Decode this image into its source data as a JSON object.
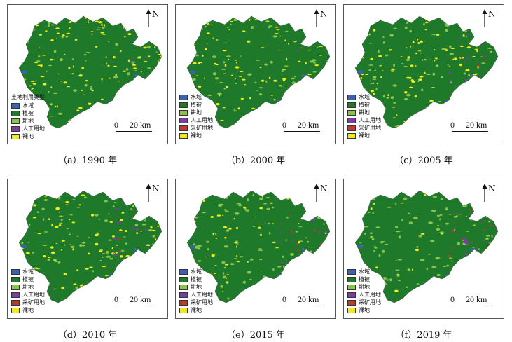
{
  "legend_title": "土地利用类型",
  "north_label": "N",
  "scale": {
    "zero": "0",
    "distance": "20 km"
  },
  "colors": {
    "water": "#3d63b0",
    "vegetation": "#1e7a2a",
    "farmland": "#8bc34a",
    "artificial": "#7b3fa0",
    "mining": "#c0392b",
    "bare": "#f2ea1d"
  },
  "legend_items": {
    "water": "水域",
    "vegetation": "植被",
    "farmland": "耕地",
    "artificial": "人工用地",
    "mining": "采矿用地",
    "bare": "裸地"
  },
  "panels": [
    {
      "caption": "（a）1990 年",
      "classes": [
        "water",
        "vegetation",
        "farmland",
        "artificial",
        "bare"
      ],
      "has_title": true
    },
    {
      "caption": "（b）2000 年",
      "classes": [
        "water",
        "vegetation",
        "farmland",
        "artificial",
        "mining",
        "bare"
      ],
      "has_title": false
    },
    {
      "caption": "（c）2005 年",
      "classes": [
        "water",
        "vegetation",
        "farmland",
        "artificial",
        "mining",
        "bare"
      ],
      "has_title": false
    },
    {
      "caption": "（d）2010 年",
      "classes": [
        "water",
        "vegetation",
        "farmland",
        "artificial",
        "mining",
        "bare"
      ],
      "has_title": false
    },
    {
      "caption": "（e）2015 年",
      "classes": [
        "water",
        "vegetation",
        "farmland",
        "artificial",
        "mining",
        "bare"
      ],
      "has_title": false
    },
    {
      "caption": "（f）2019 年",
      "classes": [
        "water",
        "vegetation",
        "farmland",
        "artificial",
        "mining",
        "bare"
      ],
      "has_title": false
    }
  ]
}
